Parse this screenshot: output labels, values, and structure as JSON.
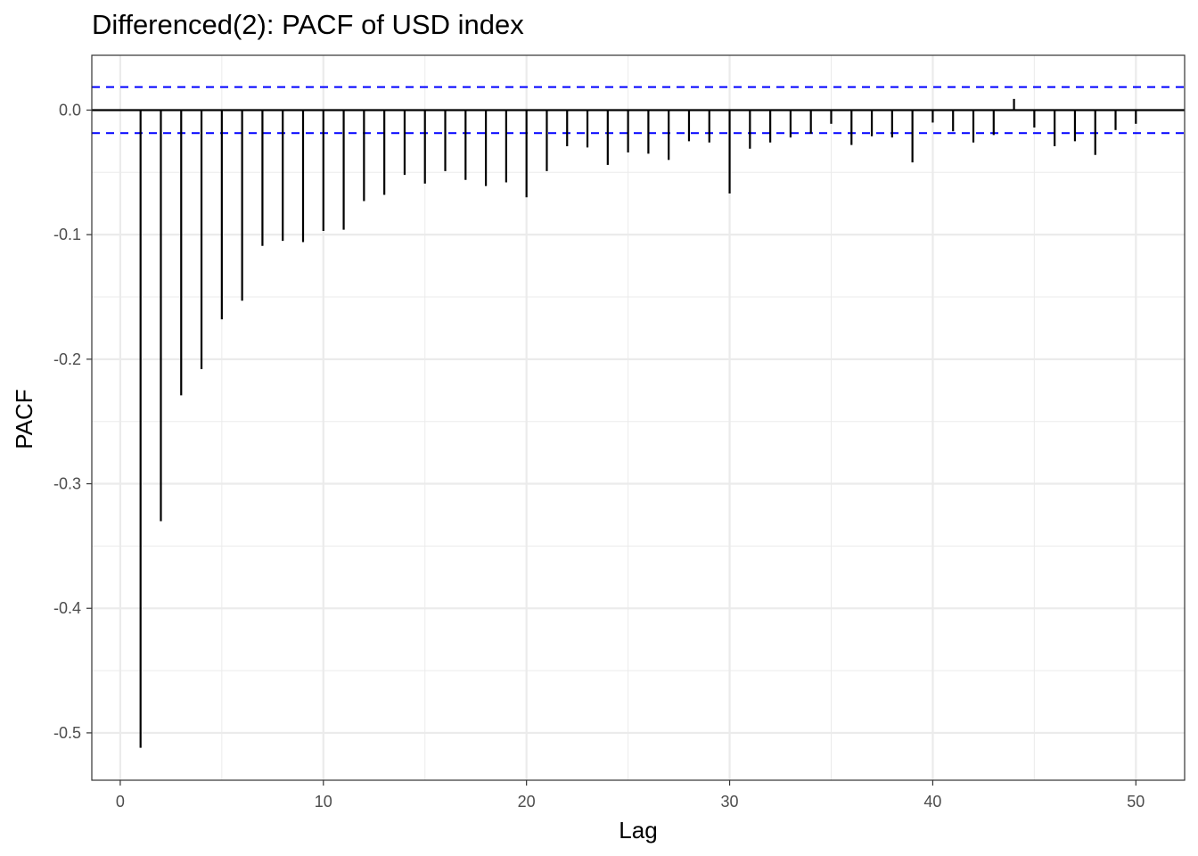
{
  "chart_data": {
    "type": "bar",
    "title": "Differenced(2): PACF of USD index",
    "xlabel": "Lag",
    "ylabel": "PACF",
    "xlim": [
      -1.4,
      52.4
    ],
    "ylim": [
      -0.538,
      0.044
    ],
    "x_ticks": [
      0,
      10,
      20,
      30,
      40,
      50
    ],
    "x_tick_labels": [
      "0",
      "10",
      "20",
      "30",
      "40",
      "50"
    ],
    "y_ticks": [
      0.0,
      -0.1,
      -0.2,
      -0.3,
      -0.4,
      -0.5
    ],
    "y_tick_labels": [
      "0.0",
      "-0.1",
      "-0.2",
      "-0.3",
      "-0.4",
      "-0.5"
    ],
    "grid": true,
    "confidence_bound": 0.0185,
    "lags": [
      1,
      2,
      3,
      4,
      5,
      6,
      7,
      8,
      9,
      10,
      11,
      12,
      13,
      14,
      15,
      16,
      17,
      18,
      19,
      20,
      21,
      22,
      23,
      24,
      25,
      26,
      27,
      28,
      29,
      30,
      31,
      32,
      33,
      34,
      35,
      36,
      37,
      38,
      39,
      40,
      41,
      42,
      43,
      44,
      45,
      46,
      47,
      48,
      49,
      50
    ],
    "values": [
      -0.512,
      -0.33,
      -0.229,
      -0.208,
      -0.168,
      -0.153,
      -0.109,
      -0.105,
      -0.106,
      -0.097,
      -0.096,
      -0.073,
      -0.068,
      -0.052,
      -0.059,
      -0.049,
      -0.056,
      -0.061,
      -0.058,
      -0.07,
      -0.049,
      -0.029,
      -0.03,
      -0.044,
      -0.034,
      -0.035,
      -0.04,
      -0.025,
      -0.026,
      -0.067,
      -0.031,
      -0.026,
      -0.022,
      -0.019,
      -0.011,
      -0.028,
      -0.021,
      -0.022,
      -0.042,
      -0.01,
      -0.017,
      -0.026,
      -0.02,
      0.009,
      -0.014,
      -0.029,
      -0.025,
      -0.036,
      -0.016,
      -0.011
    ],
    "colors": {
      "bars": "#000000",
      "zero_line": "#000000",
      "confidence_lines": "#0000ff",
      "grid": "#ebebeb",
      "panel_border": "#333333",
      "tick_text": "#4d4d4d"
    }
  }
}
